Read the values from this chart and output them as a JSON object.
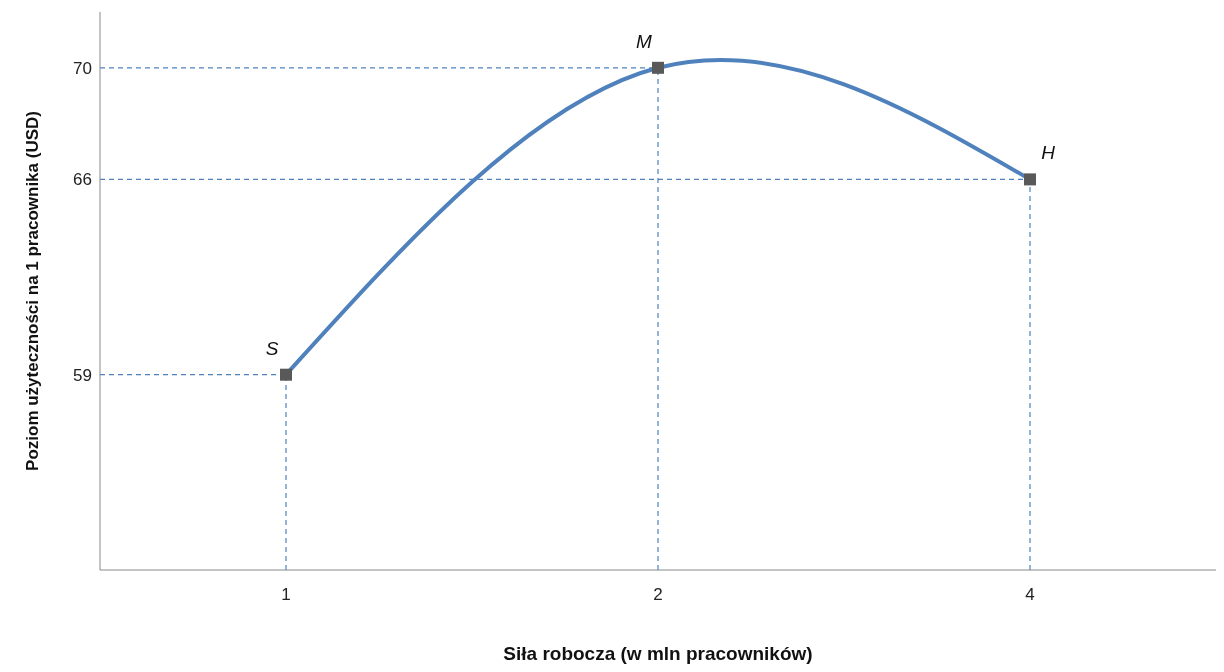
{
  "chart_data": {
    "type": "line",
    "xlabel": "Siła robocza (w mln pracowników)",
    "ylabel": "Poziom użyteczności na 1 pracownika (USD)",
    "categories": [
      "1",
      "2",
      "4"
    ],
    "series": [
      {
        "color": "#4f81bd",
        "values": [
          59,
          70,
          66
        ]
      }
    ],
    "ylim": [
      52,
      72
    ],
    "yticks": [
      59,
      66,
      70
    ],
    "grid": false,
    "marker": "square",
    "line_style": "solid",
    "ref_lines": [
      {
        "axis": "y",
        "value": 59,
        "color": "#4f81bd",
        "line_style": "dashed"
      },
      {
        "axis": "y",
        "value": 66,
        "color": "#4f81bd",
        "line_style": "dashed"
      },
      {
        "axis": "y",
        "value": 70,
        "color": "#4f81bd",
        "line_style": "dashed"
      },
      {
        "axis": "x",
        "value": "1",
        "color": "#4f81bd",
        "line_style": "dashed"
      },
      {
        "axis": "x",
        "value": "2",
        "color": "#4f81bd",
        "line_style": "dashed"
      },
      {
        "axis": "x",
        "value": "4",
        "color": "#4f81bd",
        "line_style": "dashed"
      }
    ],
    "annotations": [
      {
        "text": "S",
        "x": "1",
        "y": 59
      },
      {
        "text": "M",
        "x": "2",
        "y": 70
      },
      {
        "text": "H",
        "x": "4",
        "y": 66
      }
    ]
  }
}
